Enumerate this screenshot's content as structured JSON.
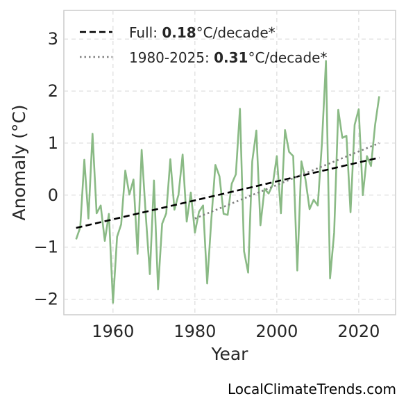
{
  "chart_data": {
    "type": "line",
    "xlabel": "Year",
    "ylabel": "Anomaly (°C)",
    "xlim": [
      1948,
      2029
    ],
    "ylim": [
      -2.3,
      3.55
    ],
    "xticks": [
      1960,
      1980,
      2000,
      2020
    ],
    "yticks": [
      -2,
      -1,
      0,
      1,
      2,
      3
    ],
    "ytick_labels": [
      "−2",
      "−1",
      "0",
      "1",
      "2",
      "3"
    ],
    "grid": true,
    "legend_position": "top-left",
    "series": [
      {
        "style": "solid",
        "color": "#8aba85",
        "x": [
          1951,
          1952,
          1953,
          1954,
          1955,
          1956,
          1957,
          1958,
          1959,
          1960,
          1961,
          1962,
          1963,
          1964,
          1965,
          1966,
          1967,
          1968,
          1969,
          1970,
          1971,
          1972,
          1973,
          1974,
          1975,
          1976,
          1977,
          1978,
          1979,
          1980,
          1981,
          1982,
          1983,
          1984,
          1985,
          1986,
          1987,
          1988,
          1989,
          1990,
          1991,
          1992,
          1993,
          1994,
          1995,
          1996,
          1997,
          1998,
          1999,
          2000,
          2001,
          2002,
          2003,
          2004,
          2005,
          2006,
          2007,
          2008,
          2009,
          2010,
          2011,
          2012,
          2013,
          2014,
          2015,
          2016,
          2017,
          2018,
          2019,
          2020,
          2021,
          2022,
          2023,
          2024,
          2025
        ],
        "values": [
          -0.85,
          -0.62,
          0.68,
          -0.45,
          1.18,
          -0.35,
          -0.2,
          -0.88,
          -0.36,
          -2.07,
          -0.8,
          -0.56,
          0.47,
          0.01,
          0.3,
          -1.13,
          0.87,
          -0.38,
          -1.52,
          0.28,
          -1.81,
          -0.55,
          -0.35,
          0.69,
          -0.28,
          0.01,
          0.78,
          -0.51,
          0.05,
          -0.72,
          -0.32,
          -0.2,
          -1.7,
          -0.48,
          0.58,
          0.36,
          -0.36,
          -0.38,
          0.22,
          0.4,
          1.66,
          -1.08,
          -1.49,
          0.65,
          1.24,
          -0.58,
          0.12,
          0.03,
          0.2,
          0.75,
          -0.35,
          1.25,
          0.83,
          0.75,
          -1.45,
          0.65,
          0.3,
          -0.27,
          -0.09,
          -0.2,
          0.98,
          2.58,
          -1.6,
          -0.72,
          1.64,
          1.1,
          1.14,
          -0.33,
          1.35,
          1.65,
          0.0,
          0.75,
          0.56,
          1.35,
          1.9
        ]
      },
      {
        "name": "Full",
        "rate": "0.18",
        "unit": "°C/decade*",
        "style": "dashed",
        "color": "#000000",
        "x": [
          1951,
          2025
        ],
        "values": [
          -0.63,
          0.72
        ]
      },
      {
        "name": "1980-2025",
        "rate": "0.31",
        "unit": "°C/decade*",
        "style": "dotted",
        "color": "#808080",
        "x": [
          1980,
          2025
        ],
        "values": [
          -0.45,
          1.0
        ]
      }
    ]
  },
  "credit": "LocalClimateTrends.com"
}
